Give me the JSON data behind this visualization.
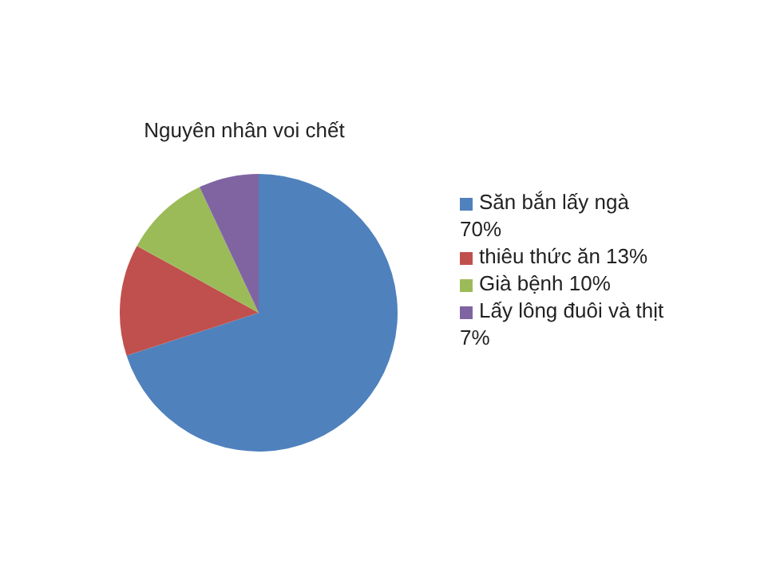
{
  "chart_data": {
    "type": "pie",
    "title": "Nguyên nhân voi chết",
    "categories": [
      "Săn bắn lấy ngà 70%",
      "thiêu thức ăn 13%",
      "Già bệnh 10%",
      "Lấy lông đuôi và thịt 7%"
    ],
    "values": [
      70,
      13,
      10,
      7
    ],
    "colors": [
      "#4f81bd",
      "#c0504d",
      "#9bbb59",
      "#8064a2"
    ],
    "legend": "right"
  }
}
